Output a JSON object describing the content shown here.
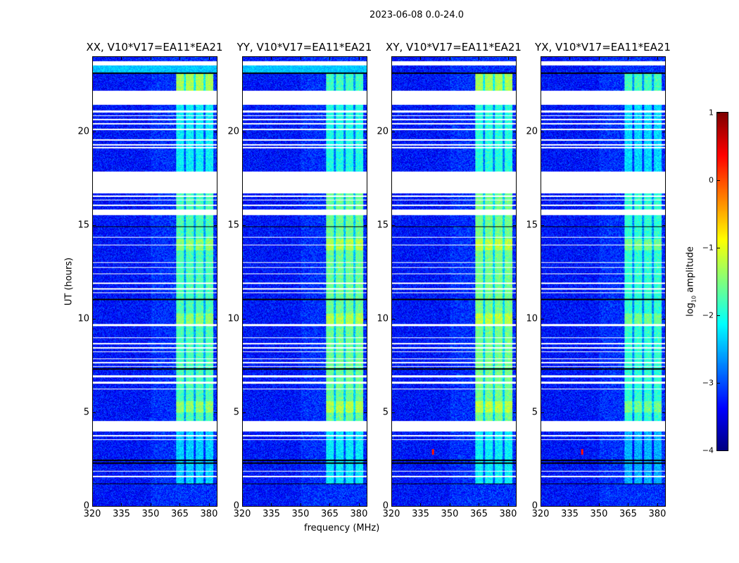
{
  "suptitle": "2023-06-08 0.0-24.0",
  "chart_data": {
    "type": "heatmap",
    "xlabel": "frequency (MHz)",
    "ylabel": "UT (hours)",
    "xlim": [
      320,
      384
    ],
    "ylim": [
      0,
      24
    ],
    "xticks": [
      320,
      335,
      350,
      365,
      380
    ],
    "yticks": [
      0,
      5,
      10,
      15,
      20
    ],
    "panels": [
      {
        "title": "XX, V10*V17=EA11*EA21",
        "band_level": -1.75,
        "top_band_level": -1.3,
        "cyan_top": true,
        "rfi_spot": false
      },
      {
        "title": "YY, V10*V17=EA11*EA21",
        "band_level": -1.6,
        "top_band_level": -1.8,
        "cyan_top": true,
        "rfi_spot": false
      },
      {
        "title": "XY, V10*V17=EA11*EA21",
        "band_level": -1.55,
        "top_band_level": -1.3,
        "cyan_top": false,
        "rfi_spot": true
      },
      {
        "title": "YX, V10*V17=EA11*EA21",
        "band_level": -1.9,
        "top_band_level": -1.8,
        "cyan_top": false,
        "rfi_spot": true
      }
    ],
    "background_level": -3.3,
    "band_mhz": [
      363,
      382
    ],
    "band_hours": [
      1.2,
      23.1
    ],
    "subband_gaps_mhz": [
      367.5,
      372.5,
      377.5
    ],
    "flagged_hours": [
      [
        23.55,
        23.8
      ],
      [
        21.45,
        22.2
      ],
      [
        21.05,
        21.15
      ],
      [
        20.85,
        20.92
      ],
      [
        20.65,
        20.72
      ],
      [
        20.4,
        20.5
      ],
      [
        20.1,
        20.18
      ],
      [
        19.55,
        19.62
      ],
      [
        19.3,
        19.36
      ],
      [
        19.15,
        19.22
      ],
      [
        16.75,
        17.9
      ],
      [
        16.55,
        16.62
      ],
      [
        16.35,
        16.4
      ],
      [
        16.05,
        16.12
      ],
      [
        15.55,
        15.85
      ],
      [
        14.35,
        14.4
      ],
      [
        13.95,
        14.0
      ],
      [
        13.0,
        13.05
      ],
      [
        12.75,
        12.8
      ],
      [
        12.4,
        12.45
      ],
      [
        11.9,
        11.95
      ],
      [
        11.6,
        11.68
      ],
      [
        11.4,
        11.45
      ],
      [
        9.65,
        9.75
      ],
      [
        9.0,
        9.05
      ],
      [
        8.65,
        8.72
      ],
      [
        8.45,
        8.5
      ],
      [
        8.25,
        8.3
      ],
      [
        7.85,
        7.9
      ],
      [
        7.65,
        7.7
      ],
      [
        7.45,
        7.5
      ],
      [
        6.9,
        7.0
      ],
      [
        6.55,
        6.65
      ],
      [
        6.25,
        6.3
      ],
      [
        4.0,
        4.55
      ],
      [
        3.75,
        3.82
      ],
      [
        3.55,
        3.6
      ],
      [
        1.85,
        1.9
      ],
      [
        1.55,
        1.62
      ]
    ],
    "black_lines_hours": [
      23.15,
      14.95,
      11.05,
      7.35,
      2.45,
      2.3,
      1.2
    ],
    "colorbar": {
      "label": "log10 amplitude",
      "range": [
        -4,
        1
      ],
      "ticks": [
        1,
        0,
        -1,
        -2,
        -3,
        -4
      ],
      "tick_labels": [
        "1",
        "0",
        "−1",
        "−2",
        "−3",
        "−4"
      ],
      "colormap": "jet"
    }
  }
}
